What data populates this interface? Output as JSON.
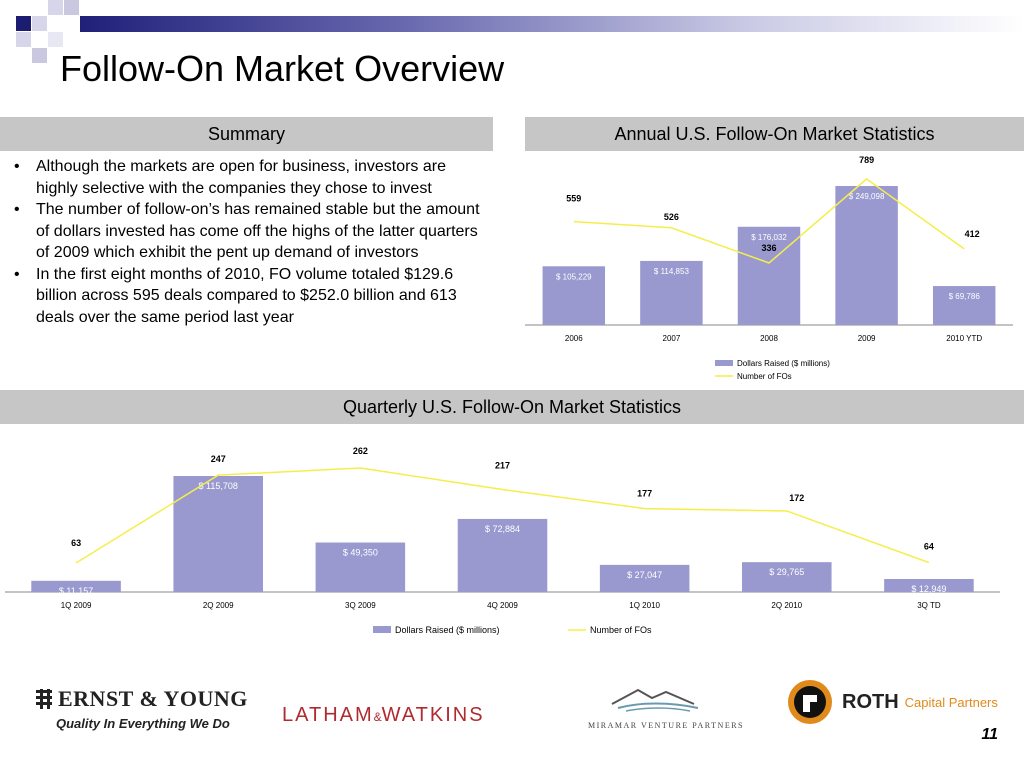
{
  "title": "Follow-On Market Overview",
  "summary": {
    "header": "Summary",
    "bullets": [
      "Although the markets are open for business, investors are highly selective with the companies they chose to invest",
      "The number of follow-on’s has remained stable but the amount of dollars invested has come off the highs of the latter quarters of 2009 which exhibit the pent up demand of investors",
      "In the first eight months of 2010, FO volume totaled $129.6 billion across 595 deals compared to $252.0 billion and 613 deals over the same period last year"
    ]
  },
  "chart_data": [
    {
      "type": "bar",
      "title": "Annual U.S. Follow-On Market Statistics",
      "categories": [
        "2006",
        "2007",
        "2008",
        "2009",
        "2010 YTD"
      ],
      "series": [
        {
          "name": "Dollars Raised ($ millions)",
          "type": "bar",
          "values": [
            105229,
            114853,
            176032,
            249098,
            69786
          ],
          "labels": [
            "$ 105,229",
            "$ 114,853",
            "$ 176,032",
            "$ 249,098",
            "$ 69,786"
          ],
          "color": "#9999d0"
        },
        {
          "name": "Number of FOs",
          "type": "line",
          "values": [
            559,
            526,
            336,
            789,
            412
          ],
          "labels": [
            "559",
            "526",
            "336",
            "789",
            "412"
          ],
          "color": "#f5ee4a"
        }
      ],
      "legend": "bottom"
    },
    {
      "type": "bar",
      "title": "Quarterly U.S. Follow-On Market Statistics",
      "categories": [
        "1Q 2009",
        "2Q 2009",
        "3Q 2009",
        "4Q 2009",
        "1Q 2010",
        "2Q 2010",
        "3Q TD"
      ],
      "series": [
        {
          "name": "Dollars Raised ($ millions)",
          "type": "bar",
          "values": [
            11157,
            115708,
            49350,
            72884,
            27047,
            29765,
            12949
          ],
          "labels": [
            "$ 11,157",
            "$ 115,708",
            "$ 49,350",
            "$ 72,884",
            "$ 27,047",
            "$ 29,765",
            "$ 12,949"
          ],
          "color": "#9999d0"
        },
        {
          "name": "Number of FOs",
          "type": "line",
          "values": [
            63,
            247,
            262,
            217,
            177,
            172,
            64
          ],
          "labels": [
            "63",
            "247",
            "262",
            "217",
            "177",
            "172",
            "64"
          ],
          "color": "#f5ee4a"
        }
      ],
      "legend": "bottom"
    }
  ],
  "logos": {
    "ey_name": "ERNST & YOUNG",
    "ey_tagline": "Quality In Everything We Do",
    "latham_left": "LATHAM",
    "latham_amp": "&",
    "latham_right": "WATKINS",
    "miramar": "Miramar Venture Partners",
    "roth_name": "ROTH",
    "roth_sub": "Capital Partners"
  },
  "page_number": "11"
}
